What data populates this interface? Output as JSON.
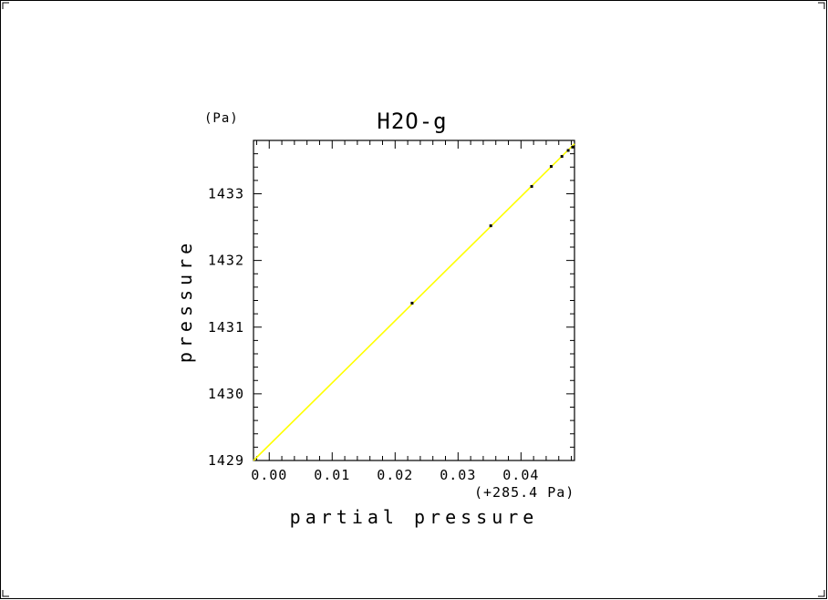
{
  "chart_data": {
    "type": "scatter",
    "title": "H2O-g",
    "xlabel": "partial pressure",
    "ylabel": "pressure",
    "x_offset_label": "(+285.4 Pa)",
    "y_unit_label": "(Pa)",
    "xlim": [
      -0.0025,
      0.0485
    ],
    "ylim": [
      1429,
      1433.8
    ],
    "x_ticks": [
      0.0,
      0.01,
      0.02,
      0.03,
      0.04
    ],
    "x_tick_labels": [
      "0.00",
      "0.01",
      "0.02",
      "0.03",
      "0.04"
    ],
    "y_ticks": [
      1429,
      1430,
      1431,
      1432,
      1433
    ],
    "y_tick_labels": [
      "1429",
      "1430",
      "1431",
      "1432",
      "1433"
    ],
    "points": [
      {
        "x": 0.0227,
        "y": 1431.36
      },
      {
        "x": 0.0352,
        "y": 1432.52
      },
      {
        "x": 0.0417,
        "y": 1433.11
      },
      {
        "x": 0.0448,
        "y": 1433.41
      },
      {
        "x": 0.0465,
        "y": 1433.56
      },
      {
        "x": 0.0475,
        "y": 1433.65
      },
      {
        "x": 0.0482,
        "y": 1433.7
      }
    ],
    "fit_line": {
      "x": [
        -0.0025,
        0.0485
      ],
      "y": [
        1429.0,
        1433.75
      ]
    },
    "fit_color": "#ffff00",
    "point_color": "#000000",
    "grid": false
  }
}
